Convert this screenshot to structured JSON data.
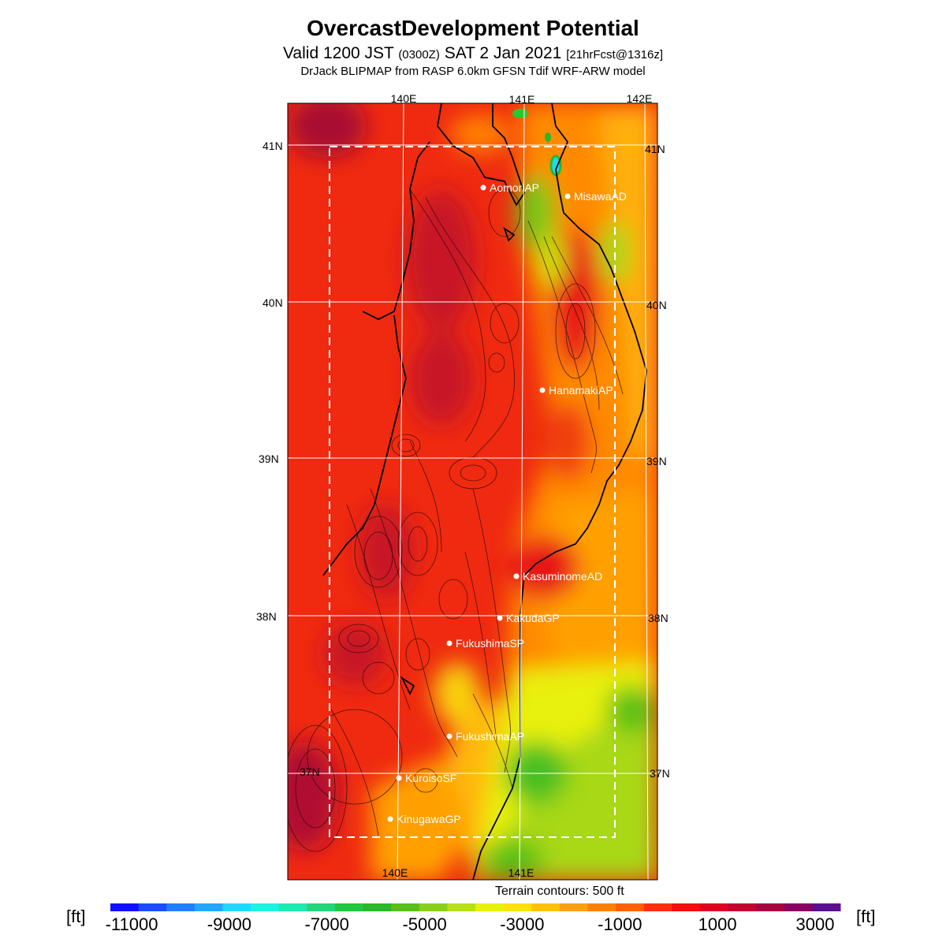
{
  "title": "OvercastDevelopment Potential",
  "subtitle_a": "Valid 1200 JST",
  "subtitle_b": "(0300Z)",
  "subtitle_c": "SAT 2 Jan 2021",
  "subtitle_d": "[21hrFcst@1316z]",
  "model_line": "DrJack BLIPMAP from RASP 6.0km GFSN Tdif WRF-ARW model",
  "grid_labels": {
    "top": [
      "140E",
      "141E",
      "142E"
    ],
    "bottom": [
      "140E",
      "141E"
    ],
    "left": [
      "41N",
      "40N",
      "39N",
      "38N",
      "37N"
    ],
    "right": [
      "41N",
      "40N",
      "39N",
      "38N",
      "37N"
    ]
  },
  "stations": [
    "AomoriAP",
    "MisawaAD",
    "HanamakiAP",
    "KasuminomeAD",
    "KakudaGP",
    "FukushimaSP",
    "FukushimaAP",
    "KuroisoSF",
    "KinugawaGP"
  ],
  "terrain_note": "Terrain contours: 500 ft",
  "colorbar": {
    "unit": "[ft]",
    "tick_labels": [
      "-11000",
      "-9000",
      "-7000",
      "-5000",
      "-3000",
      "-1000",
      "1000",
      "3000"
    ],
    "colors": [
      "#1010ff",
      "#1a4dff",
      "#1f7fff",
      "#20a8ff",
      "#20d8ff",
      "#20f0e0",
      "#20e8b0",
      "#20d878",
      "#20c840",
      "#28b828",
      "#58c018",
      "#88d018",
      "#b8e018",
      "#e8f010",
      "#ffe010",
      "#ffc010",
      "#ffa010",
      "#ff8000",
      "#ff6000",
      "#ff3010",
      "#f01010",
      "#e00020",
      "#c80030",
      "#a80040",
      "#880060",
      "#5a1090"
    ]
  },
  "colors": {
    "field_red": "#f03010",
    "field_orange": "#ff8000",
    "field_yellow": "#f0e010",
    "field_green": "#58c018",
    "field_maroon": "#a81030"
  }
}
